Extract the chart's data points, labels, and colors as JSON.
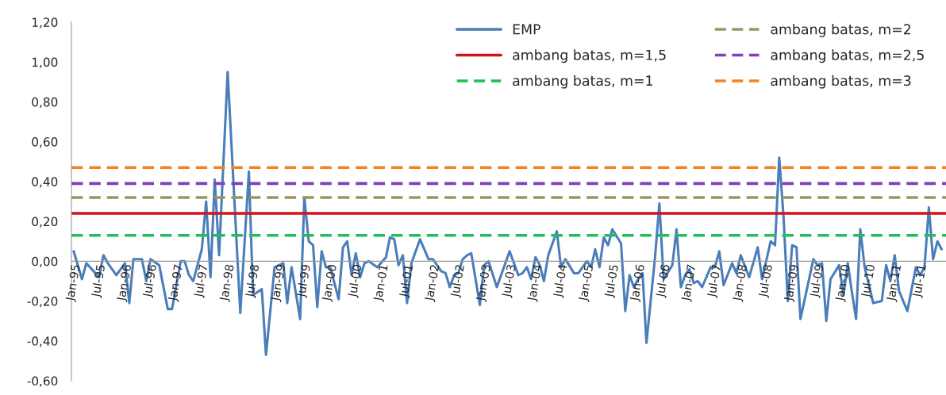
{
  "chart_data": {
    "type": "line",
    "x": [
      "1995-01",
      "1995-03",
      "1995-04",
      "1995-07",
      "1995-08",
      "1995-09",
      "1995-11",
      "1996-01",
      "1996-02",
      "1996-03",
      "1996-05",
      "1996-06",
      "1996-07",
      "1996-09",
      "1996-11",
      "1996-12",
      "1997-02",
      "1997-03",
      "1997-04",
      "1997-05",
      "1997-07",
      "1997-08",
      "1997-09",
      "1997-10",
      "1997-11",
      "1998-01",
      "1998-04",
      "1998-06",
      "1998-07",
      "1998-09",
      "1998-10",
      "1998-12",
      "1999-02",
      "1999-03",
      "1999-04",
      "1999-06",
      "1999-07",
      "1999-08",
      "1999-09",
      "1999-10",
      "1999-11",
      "1999-12",
      "2000-01",
      "2000-03",
      "2000-04",
      "2000-05",
      "2000-06",
      "2000-07",
      "2000-08",
      "2000-09",
      "2000-10",
      "2000-12",
      "2001-02",
      "2001-03",
      "2001-04",
      "2001-05",
      "2001-06",
      "2001-07",
      "2001-08",
      "2001-10",
      "2001-12",
      "2002-01",
      "2002-03",
      "2002-04",
      "2002-05",
      "2002-06",
      "2002-07",
      "2002-08",
      "2002-09",
      "2002-10",
      "2002-12",
      "2003-01",
      "2003-02",
      "2003-04",
      "2003-05",
      "2003-07",
      "2003-08",
      "2003-09",
      "2003-10",
      "2003-11",
      "2003-12",
      "2004-01",
      "2004-02",
      "2004-03",
      "2004-04",
      "2004-06",
      "2004-07",
      "2004-08",
      "2004-10",
      "2004-11",
      "2005-01",
      "2005-02",
      "2005-03",
      "2005-04",
      "2005-05",
      "2005-06",
      "2005-07",
      "2005-09",
      "2005-10",
      "2005-11",
      "2005-12",
      "2006-01",
      "2006-02",
      "2006-03",
      "2006-05",
      "2006-06",
      "2006-07",
      "2006-09",
      "2006-10",
      "2006-11",
      "2006-12",
      "2007-01",
      "2007-02",
      "2007-03",
      "2007-04",
      "2007-06",
      "2007-07",
      "2007-08",
      "2007-09",
      "2007-11",
      "2007-12",
      "2008-01",
      "2008-03",
      "2008-05",
      "2008-06",
      "2008-08",
      "2008-09",
      "2008-10",
      "2008-11",
      "2008-12",
      "2009-01",
      "2009-02",
      "2009-03",
      "2009-06",
      "2009-07",
      "2009-08",
      "2009-09",
      "2009-10",
      "2009-12",
      "2010-01",
      "2010-02",
      "2010-03",
      "2010-04",
      "2010-05",
      "2010-06",
      "2010-08",
      "2010-10",
      "2010-11",
      "2010-12",
      "2011-01",
      "2011-02",
      "2011-04",
      "2011-06",
      "2011-07",
      "2011-08",
      "2011-09",
      "2011-10",
      "2011-11",
      "2011-12"
    ],
    "series": [
      {
        "name": "EMP",
        "color": "#4a7ebb",
        "values": [
          0.05,
          -0.09,
          -0.01,
          -0.08,
          0.03,
          -0.01,
          -0.07,
          -0.01,
          -0.21,
          0.01,
          0.01,
          -0.1,
          0.01,
          -0.02,
          -0.24,
          -0.24,
          0.0,
          0.0,
          -0.07,
          -0.1,
          0.06,
          0.3,
          -0.08,
          0.41,
          0.03,
          0.95,
          -0.26,
          0.45,
          -0.17,
          -0.14,
          -0.47,
          -0.03,
          -0.01,
          -0.21,
          -0.03,
          -0.29,
          0.32,
          0.1,
          0.08,
          -0.23,
          0.05,
          -0.03,
          -0.03,
          -0.19,
          0.07,
          0.1,
          -0.07,
          0.04,
          -0.08,
          -0.01,
          0.0,
          -0.03,
          0.02,
          0.12,
          0.11,
          -0.02,
          0.03,
          -0.21,
          -0.01,
          0.11,
          0.01,
          0.01,
          -0.05,
          -0.06,
          -0.13,
          -0.07,
          -0.06,
          0.01,
          0.03,
          0.04,
          -0.22,
          -0.02,
          0.0,
          -0.13,
          -0.07,
          0.05,
          -0.01,
          -0.07,
          -0.06,
          -0.03,
          -0.09,
          0.02,
          -0.02,
          -0.1,
          0.03,
          0.15,
          -0.03,
          0.01,
          -0.06,
          -0.06,
          0.0,
          -0.03,
          0.06,
          -0.03,
          0.12,
          0.08,
          0.16,
          0.09,
          -0.25,
          -0.07,
          -0.13,
          -0.09,
          -0.06,
          -0.41,
          0.02,
          0.29,
          -0.09,
          -0.02,
          0.16,
          -0.13,
          -0.07,
          -0.04,
          -0.11,
          -0.1,
          -0.13,
          -0.03,
          -0.03,
          0.05,
          -0.12,
          -0.01,
          -0.06,
          0.03,
          -0.08,
          0.07,
          -0.09,
          0.1,
          0.08,
          0.52,
          0.22,
          -0.2,
          0.08,
          0.07,
          -0.29,
          0.01,
          -0.02,
          -0.01,
          -0.3,
          -0.09,
          -0.02,
          -0.17,
          -0.01,
          -0.15,
          -0.29,
          0.16,
          -0.03,
          -0.21,
          -0.2,
          -0.02,
          -0.1,
          0.03,
          -0.15,
          -0.25,
          -0.03,
          -0.07,
          -0.03,
          0.27,
          0.01,
          0.1,
          0.06
        ]
      },
      {
        "name": "ambang batas, m=1,5",
        "color": "#d0141b",
        "line_style": "solid",
        "x": [
          "1994-12-16",
          "2012-01-01"
        ],
        "values": [
          0.24,
          0.24
        ]
      },
      {
        "name": "ambang batas, m=1",
        "color": "#1fbf5a",
        "line_style": "dashed",
        "x": [
          "1994-12-16",
          "2012-01-01"
        ],
        "values": [
          0.13,
          0.13
        ]
      },
      {
        "name": "ambang batas, m=2",
        "color": "#9c9462",
        "line_style": "dashed",
        "x": [
          "1994-12-16",
          "2012-01-01"
        ],
        "values": [
          0.32,
          0.32
        ]
      },
      {
        "name": "ambang batas, m=2,5",
        "color": "#7f3fbf",
        "line_style": "dashed",
        "x": [
          "1994-12-16",
          "2012-01-01"
        ],
        "values": [
          0.39,
          0.39
        ]
      },
      {
        "name": "ambang batas, m=3",
        "color": "#f5821f",
        "line_style": "dashed",
        "x": [
          "1994-12-16",
          "2012-01-01"
        ],
        "values": [
          0.47,
          0.47
        ]
      }
    ],
    "xlim": [
      "1994-12-16",
      "2012-01-01"
    ],
    "xticks": [
      {
        "value": "1995-01",
        "label": "Jan-95"
      },
      {
        "value": "1995-07",
        "label": "Jul-95"
      },
      {
        "value": "1996-01",
        "label": "Jan-96"
      },
      {
        "value": "1996-07",
        "label": "Jul-96"
      },
      {
        "value": "1997-01",
        "label": "Jan-97"
      },
      {
        "value": "1997-07",
        "label": "Jul-97"
      },
      {
        "value": "1998-01",
        "label": "Jan-98"
      },
      {
        "value": "1998-07",
        "label": "Jul-98"
      },
      {
        "value": "1999-01",
        "label": "Jan-99"
      },
      {
        "value": "1999-07",
        "label": "Jul-99"
      },
      {
        "value": "2000-01",
        "label": "Jan-00"
      },
      {
        "value": "2000-07",
        "label": "Jul-00"
      },
      {
        "value": "2001-01",
        "label": "Jan-01"
      },
      {
        "value": "2001-07",
        "label": "Jul-01"
      },
      {
        "value": "2002-01",
        "label": "Jan-02"
      },
      {
        "value": "2002-07",
        "label": "Jul-02"
      },
      {
        "value": "2003-01",
        "label": "Jan-03"
      },
      {
        "value": "2003-07",
        "label": "Jul-03"
      },
      {
        "value": "2004-01",
        "label": "Jan-04"
      },
      {
        "value": "2004-07",
        "label": "Jul-04"
      },
      {
        "value": "2005-01",
        "label": "Jan-05"
      },
      {
        "value": "2005-07",
        "label": "Jul-05"
      },
      {
        "value": "2006-01",
        "label": "Jan-06"
      },
      {
        "value": "2006-07",
        "label": "Jul-06"
      },
      {
        "value": "2007-01",
        "label": "Jan-07"
      },
      {
        "value": "2007-07",
        "label": "Jul-07"
      },
      {
        "value": "2008-01",
        "label": "Jan-08"
      },
      {
        "value": "2008-07",
        "label": "Jul-08"
      },
      {
        "value": "2009-01",
        "label": "Jan-09"
      },
      {
        "value": "2009-07",
        "label": "Jul-09"
      },
      {
        "value": "2010-01",
        "label": "Jan-10"
      },
      {
        "value": "2010-07",
        "label": "Jul-10"
      },
      {
        "value": "2011-01",
        "label": "Jan-11"
      },
      {
        "value": "2011-07",
        "label": "Jul-11"
      }
    ],
    "ylim": [
      -0.6,
      1.2
    ],
    "yticks": [
      {
        "value": -0.6,
        "label": "-0,60"
      },
      {
        "value": -0.4,
        "label": "-0,40"
      },
      {
        "value": -0.2,
        "label": "-0,20"
      },
      {
        "value": 0,
        "label": "0,00"
      },
      {
        "value": 0.2,
        "label": "0,20"
      },
      {
        "value": 0.4,
        "label": "0,40"
      },
      {
        "value": 0.6,
        "label": "0,60"
      },
      {
        "value": 0.8,
        "label": "0,80"
      },
      {
        "value": 1.0,
        "label": "1,00"
      },
      {
        "value": 1.2,
        "label": "1,20"
      }
    ],
    "legend": "top right",
    "grid": false,
    "marker": "none",
    "line_style": "solid"
  }
}
